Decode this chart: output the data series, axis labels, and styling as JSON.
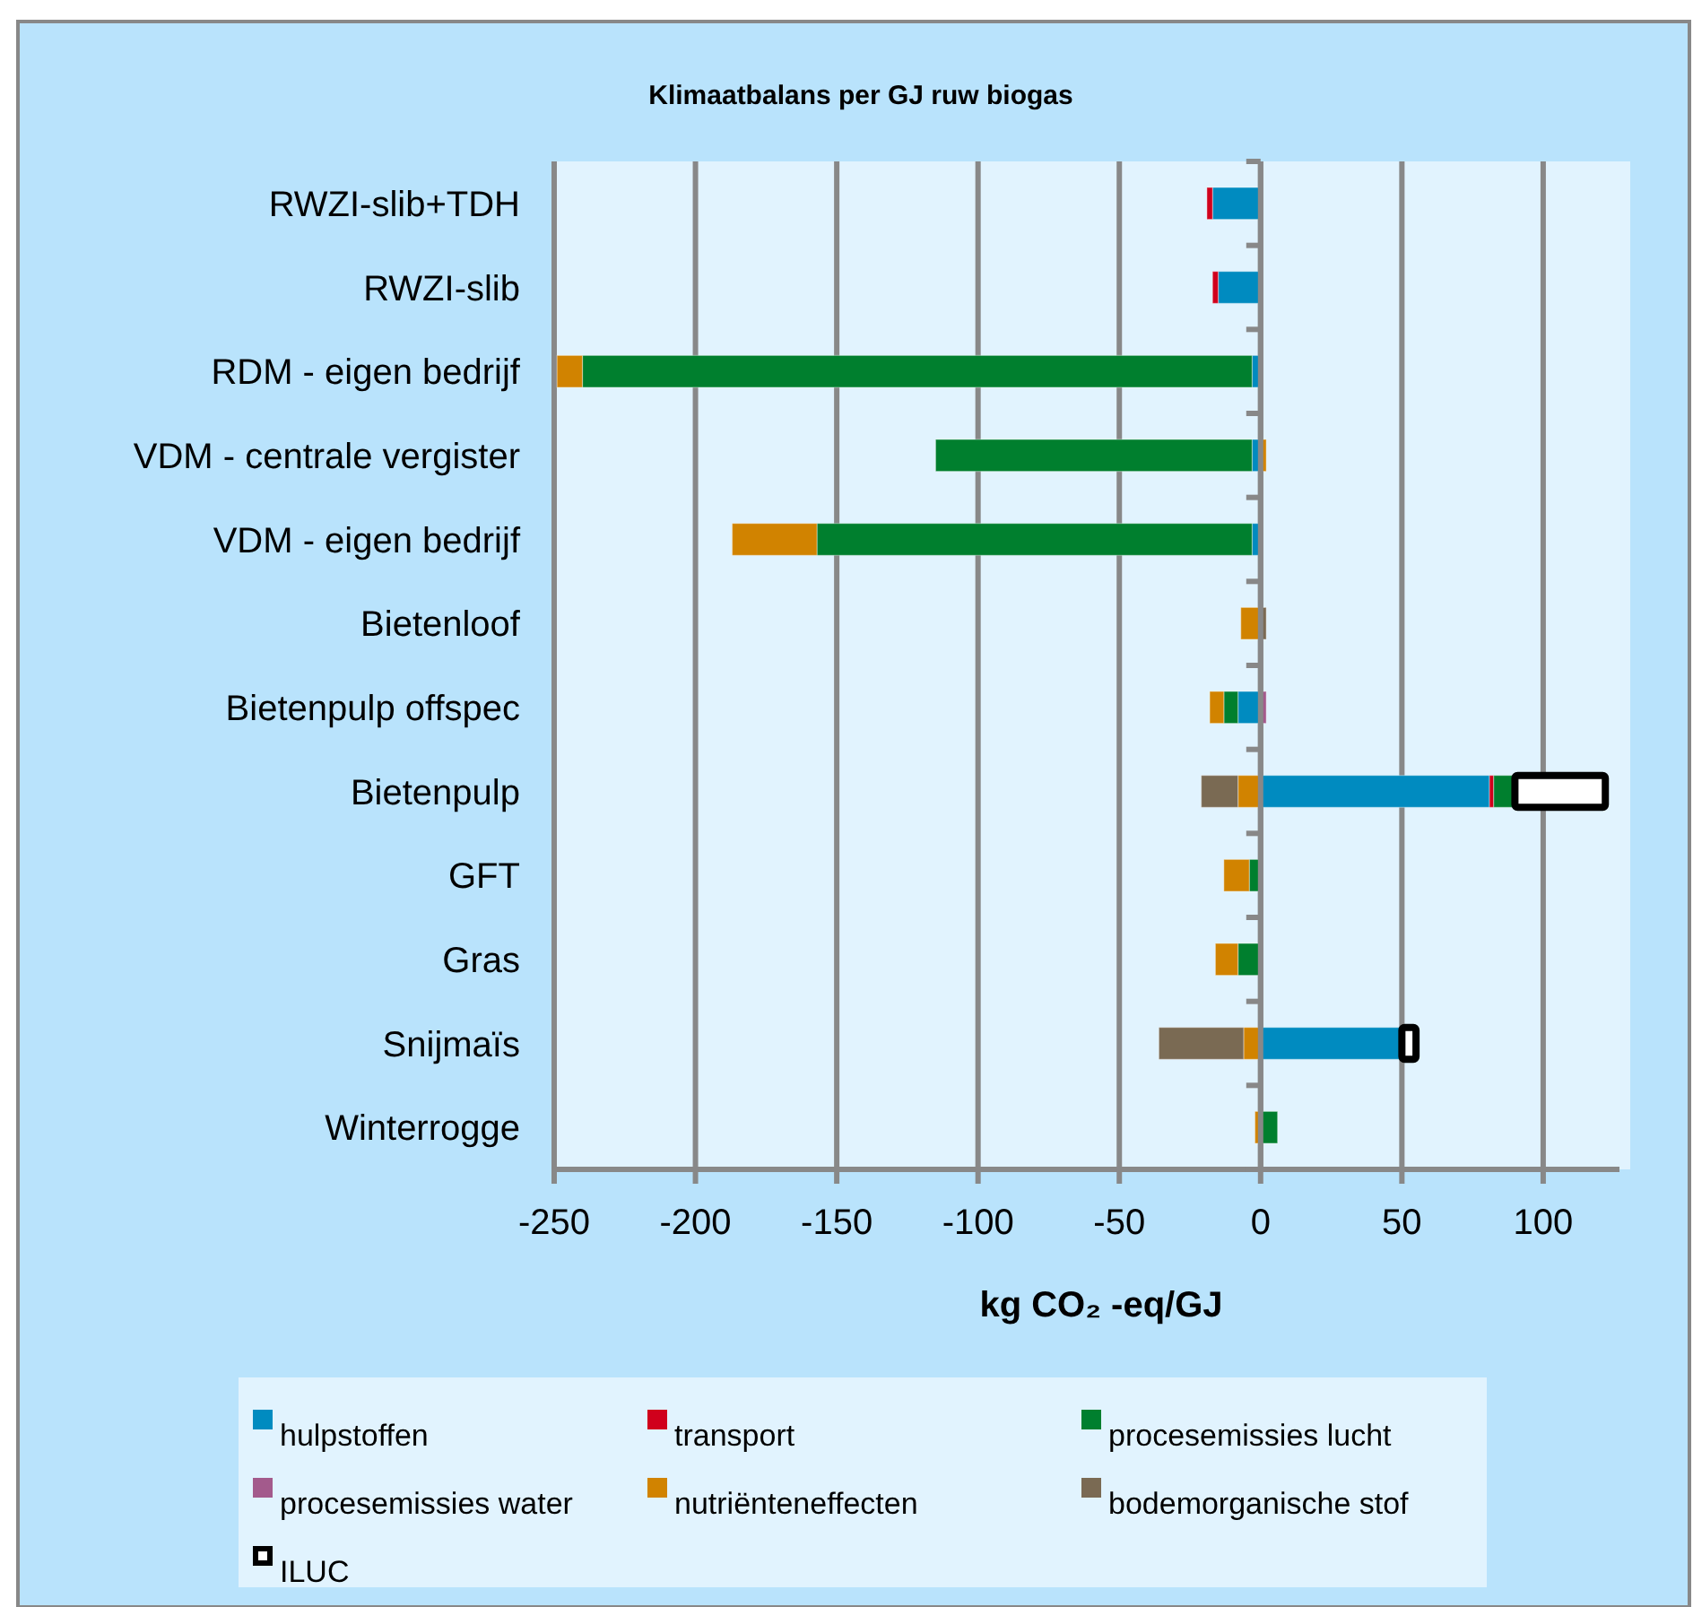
{
  "chart_data": {
    "type": "bar",
    "orientation": "horizontal",
    "stacked": true,
    "title": "Klimaatbalans per GJ ruw biogas",
    "xlabel": "kg CO₂ -eq/GJ",
    "categories": [
      "RWZI-slib+TDH",
      "RWZI-slib",
      "RDM - eigen bedrijf",
      "VDM - centrale vergister",
      "VDM - eigen bedrijf",
      "Bietenloof",
      "Bietenpulp offspec",
      "Bietenpulp",
      "GFT",
      "Gras",
      "Snijmaïs",
      "Winterrogge"
    ],
    "series": [
      {
        "name": "hulpstoffen",
        "color": "#008bc0",
        "values": [
          -17,
          -15,
          -3,
          -3,
          -3,
          null,
          -8,
          81,
          null,
          null,
          50,
          null
        ]
      },
      {
        "name": "transport",
        "color": "#d0001c",
        "values": [
          -2,
          -2,
          null,
          null,
          null,
          null,
          null,
          1.5,
          null,
          null,
          null,
          null
        ]
      },
      {
        "name": "procesemissies lucht",
        "color": "#007f2e",
        "values": [
          null,
          null,
          -237,
          -112,
          -154,
          null,
          -5,
          7.5,
          -4,
          -8,
          null,
          6
        ]
      },
      {
        "name": "procesemissies water",
        "color": "#a35a8c",
        "values": [
          null,
          null,
          null,
          null,
          null,
          null,
          2,
          null,
          null,
          null,
          null,
          null
        ]
      },
      {
        "name": "nutriënteneffecten",
        "color": "#d18300",
        "values": [
          null,
          null,
          -9,
          2,
          -30,
          -7,
          -5,
          -8,
          -9,
          -8,
          -6,
          -2
        ]
      },
      {
        "name": "bodemorganische stof",
        "color": "#7a6a53",
        "values": [
          null,
          null,
          null,
          null,
          null,
          2,
          null,
          -13,
          null,
          null,
          -30,
          null
        ]
      },
      {
        "name": "ILUC",
        "color": "#ffffff",
        "values": [
          null,
          null,
          null,
          null,
          null,
          null,
          null,
          32,
          null,
          null,
          5,
          null
        ]
      }
    ],
    "xlim": [
      -250,
      127
    ],
    "xticks": [
      -250,
      -200,
      -150,
      -100,
      -50,
      0,
      50,
      100
    ],
    "grid": "x",
    "legend": "bottom"
  }
}
